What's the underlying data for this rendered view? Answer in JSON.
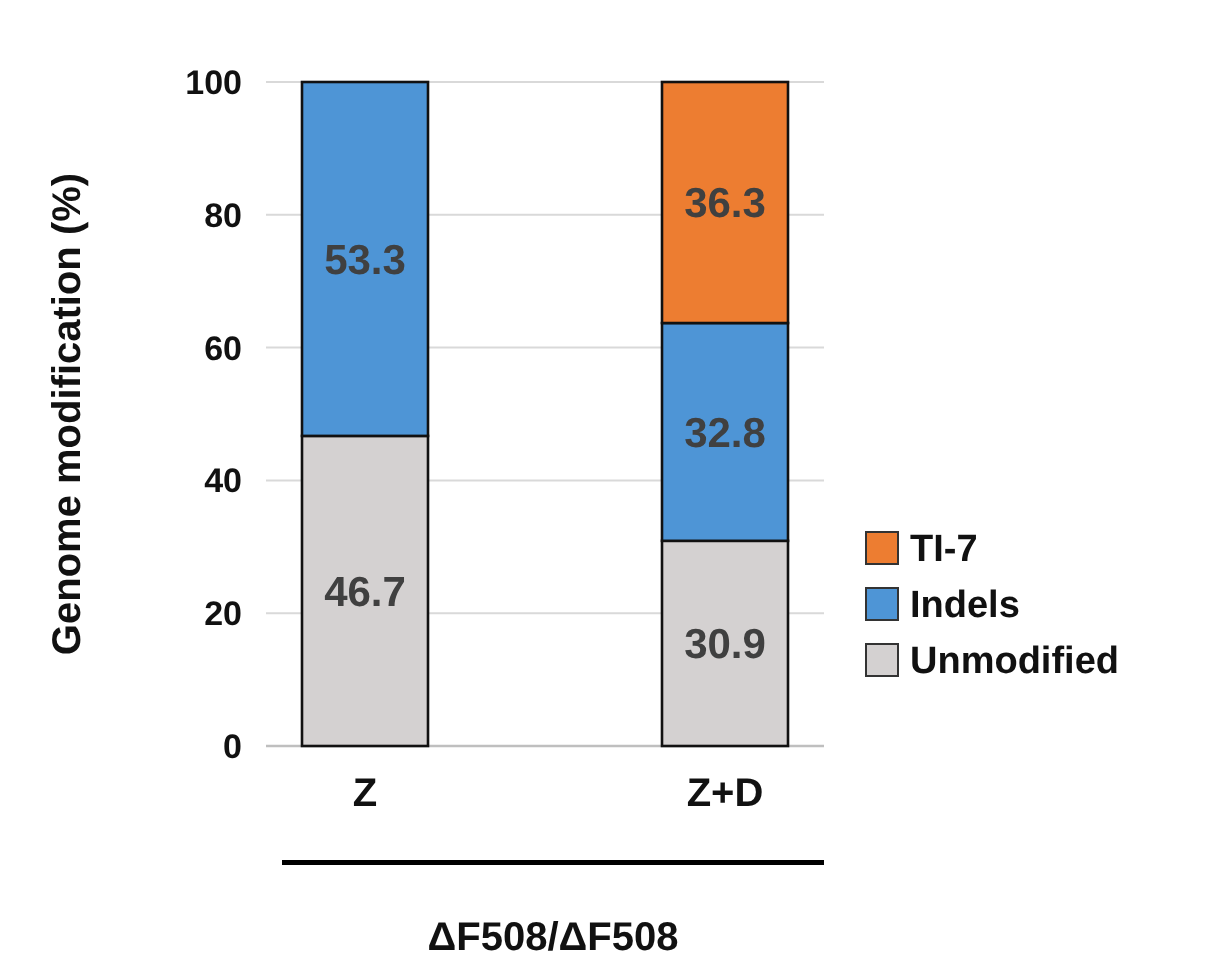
{
  "chart_data": {
    "type": "bar",
    "stacked": true,
    "categories": [
      "Z",
      "Z+D"
    ],
    "series": [
      {
        "name": "Unmodified",
        "color": "#d4d1d1",
        "values": [
          46.7,
          30.9
        ]
      },
      {
        "name": "Indels",
        "color": "#4e95d6",
        "values": [
          53.3,
          32.8
        ]
      },
      {
        "name": "TI-7",
        "color": "#ed7d31",
        "values": [
          null,
          36.3
        ]
      }
    ],
    "ylabel": "Genome modification (%)",
    "xlabel": "ΔF508/ΔF508",
    "ylim": [
      0,
      100
    ],
    "yticks": [
      0,
      20,
      40,
      60,
      80,
      100
    ],
    "grid": "y",
    "legend": "right",
    "data_labels": true
  }
}
